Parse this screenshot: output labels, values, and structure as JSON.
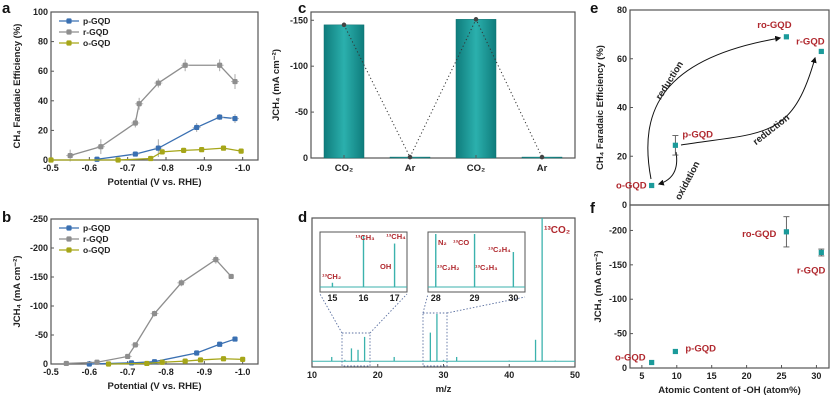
{
  "panel_letters": {
    "a": "a",
    "b": "b",
    "c": "c",
    "d": "d",
    "e": "e",
    "f": "f"
  },
  "colors": {
    "p-GQD": "#3a70b2",
    "r-GQD": "#8e8e8e",
    "o-GQD": "#a6a619",
    "teal": "#1b9a9a",
    "label_red": "#b0282e"
  },
  "chart_data": [
    {
      "panel": "a",
      "type": "line",
      "xlabel": "Potential (V vs. RHE)",
      "ylabel": "CH₄ Faradaic Efficiency (%)",
      "xlim": [
        -0.5,
        -1.04
      ],
      "ylim": [
        0,
        100
      ],
      "xticks": [
        -0.5,
        -0.6,
        -0.7,
        -0.8,
        -0.9,
        -1.0
      ],
      "xtick_labels": [
        "-0.5",
        "-0.6",
        "-0.7",
        "-0.8",
        "-0.9",
        "-1.0"
      ],
      "yticks": [
        0,
        20,
        40,
        60,
        80,
        100
      ],
      "ytick_labels": [
        "0",
        "20",
        "40",
        "60",
        "80",
        "100"
      ],
      "legend": "top-left",
      "grid": false,
      "series": [
        {
          "name": "p-GQD",
          "color": "#3a70b2",
          "x": [
            -0.62,
            -0.72,
            -0.78,
            -0.88,
            -0.94,
            -0.98
          ],
          "y": [
            0.5,
            4,
            8,
            22,
            29,
            28
          ],
          "yerr": [
            0,
            1,
            6,
            3,
            2,
            3
          ]
        },
        {
          "name": "r-GQD",
          "color": "#8e8e8e",
          "x": [
            -0.55,
            -0.63,
            -0.72,
            -0.73,
            -0.78,
            -0.85,
            -0.94,
            -0.98
          ],
          "y": [
            3,
            9,
            25,
            38,
            52,
            64,
            64,
            53
          ],
          "yerr": [
            4,
            5,
            3,
            4,
            3,
            4,
            4,
            5
          ]
        },
        {
          "name": "o-GQD",
          "color": "#a6a619",
          "x": [
            -0.5,
            -0.675,
            -0.76,
            -0.79,
            -0.846,
            -0.893,
            -0.95,
            -0.996
          ],
          "y": [
            0,
            0,
            1,
            5.5,
            6.5,
            7,
            8,
            6
          ],
          "yerr": [
            0,
            0,
            0,
            0,
            0,
            0,
            0,
            0
          ]
        }
      ]
    },
    {
      "panel": "b",
      "type": "line",
      "xlabel": "Potential (V vs. RHE)",
      "ylabel": "JCH₄ (mA cm⁻²)",
      "xlim": [
        -0.5,
        -1.04
      ],
      "ylim": [
        0,
        -250
      ],
      "xticks": [
        -0.5,
        -0.6,
        -0.7,
        -0.8,
        -0.9,
        -1.0
      ],
      "xtick_labels": [
        "-0.5",
        "-0.6",
        "-0.7",
        "-0.8",
        "-0.9",
        "-1.0"
      ],
      "yticks": [
        0,
        -50,
        -100,
        -150,
        -200,
        -250
      ],
      "ytick_labels": [
        "0",
        "-50",
        "-100",
        "-150",
        "-200",
        "-250"
      ],
      "legend": "top-left",
      "grid": false,
      "series": [
        {
          "name": "p-GQD",
          "color": "#3a70b2",
          "x": [
            -0.6,
            -0.71,
            -0.77,
            -0.88,
            -0.94,
            -0.98
          ],
          "y": [
            0,
            -2,
            -4,
            -19,
            -34,
            -43
          ],
          "yerr": [
            0,
            0,
            0,
            0,
            0,
            0
          ]
        },
        {
          "name": "r-GQD",
          "color": "#8e8e8e",
          "x": [
            -0.54,
            -0.62,
            -0.7,
            -0.72,
            -0.77,
            -0.84,
            -0.93,
            -0.97
          ],
          "y": [
            -1,
            -3,
            -13,
            -33,
            -87,
            -140,
            -180,
            -151
          ],
          "yerr": [
            0,
            0,
            3,
            4,
            5,
            6,
            7,
            0
          ]
        },
        {
          "name": "o-GQD",
          "color": "#a6a619",
          "x": [
            -0.65,
            -0.75,
            -0.79,
            -0.85,
            -0.89,
            -0.95,
            -1.0
          ],
          "y": [
            0,
            -1,
            -3,
            -5,
            -7,
            -9,
            -8
          ],
          "yerr": [
            0,
            0,
            0,
            0,
            0,
            0,
            0
          ]
        }
      ]
    },
    {
      "panel": "c",
      "type": "bar",
      "xlabel": "",
      "ylabel": "JCH₄ (mA cm⁻²)",
      "categories": [
        "CO₂",
        "Ar",
        "CO₂",
        "Ar"
      ],
      "values": [
        -145,
        -1,
        -151,
        -1
      ],
      "ylim": [
        0,
        -159
      ],
      "yticks": [
        0,
        -50,
        -100,
        -150
      ],
      "ytick_labels": [
        "0",
        "-50",
        "-100",
        "-150"
      ],
      "color": "#1b9a9a",
      "connector": "dotted"
    },
    {
      "panel": "d",
      "type": "bar",
      "xlabel": "m/z",
      "ylabel": "",
      "xlim": [
        10,
        50
      ],
      "ylim": [
        -0.04,
        1.0
      ],
      "xticks": [
        10,
        20,
        30,
        40,
        50
      ],
      "xtick_labels": [
        "10",
        "20",
        "30",
        "40",
        "50"
      ],
      "peaks": {
        "mz": [
          13,
          15,
          16,
          17,
          18,
          22.5,
          28,
          29,
          30,
          32,
          40,
          44,
          45,
          47
        ],
        "intensity": [
          0.03,
          0.01,
          0.09,
          0.08,
          0.17,
          0.03,
          0.2,
          0.33,
          0.01,
          0.03,
          0.005,
          0.15,
          1.0,
          0.005
        ]
      },
      "peak_label": {
        "mz": 45,
        "text": "¹³CO₂"
      },
      "insets": [
        {
          "xlim": [
            14.6,
            17.4
          ],
          "xticks": [
            15,
            16,
            17
          ],
          "xtick_labels": [
            "15",
            "16",
            "17"
          ],
          "peaks": {
            "mz": [
              15,
              16,
              17
            ],
            "intensity": [
              0.08,
              0.98,
              0.82
            ]
          },
          "labels": [
            "¹³CH₂",
            "¹³CH₃",
            "¹³CH₄",
            "OH"
          ]
        },
        {
          "xlim": [
            27.8,
            30.3
          ],
          "xticks": [
            28,
            29,
            30
          ],
          "xtick_labels": [
            "28",
            "29",
            "30"
          ],
          "peaks": {
            "mz": [
              28,
              29,
              30
            ],
            "intensity": [
              1.0,
              1.0,
              0.66
            ]
          },
          "labels": [
            "N₂",
            "¹³CO",
            "¹³C₂H₄",
            "¹³C₂H₂",
            "¹³C₂H₃"
          ]
        }
      ]
    },
    {
      "panel": "e",
      "type": "scatter",
      "xlabel": "",
      "ylabel": "CH₄ Faradaic Efficiency (%)",
      "xlim": [
        3.3,
        31.8
      ],
      "ylim": [
        0,
        80
      ],
      "yticks": [
        0,
        20,
        40,
        60,
        80
      ],
      "ytick_labels": [
        "0",
        "20",
        "40",
        "60",
        "80"
      ],
      "points": [
        {
          "label": "o-GQD",
          "x": 6.4,
          "y": 8,
          "yerr": 0
        },
        {
          "label": "p-GQD",
          "x": 9.8,
          "y": 24.5,
          "yerr": 4
        },
        {
          "label": "ro-GQD",
          "x": 25.7,
          "y": 69,
          "yerr": 0
        },
        {
          "label": "r-GQD",
          "x": 30.7,
          "y": 63,
          "yerr": 0
        }
      ],
      "annotations": [
        "reduction",
        "reduction",
        "oxidation"
      ]
    },
    {
      "panel": "f",
      "type": "scatter",
      "xlabel": "Atomic Content of -OH (atom%)",
      "ylabel": "JCH₄ (mA cm⁻²)",
      "xlim": [
        3.3,
        31.8
      ],
      "ylim": [
        0,
        -237
      ],
      "xticks": [
        5,
        10,
        15,
        20,
        25,
        30
      ],
      "xtick_labels": [
        "5",
        "10",
        "15",
        "20",
        "25",
        "30"
      ],
      "yticks": [
        0,
        -50,
        -100,
        -150,
        -200
      ],
      "ytick_labels": [
        "0",
        "-50",
        "-100",
        "-150",
        "-200"
      ],
      "points": [
        {
          "label": "o-GQD",
          "x": 6.4,
          "y": -8,
          "yerr": 0
        },
        {
          "label": "p-GQD",
          "x": 9.8,
          "y": -24,
          "yerr": 0
        },
        {
          "label": "ro-GQD",
          "x": 25.7,
          "y": -198,
          "yerr": 22
        },
        {
          "label": "r-GQD",
          "x": 30.7,
          "y": -168,
          "yerr": 5
        }
      ]
    }
  ]
}
